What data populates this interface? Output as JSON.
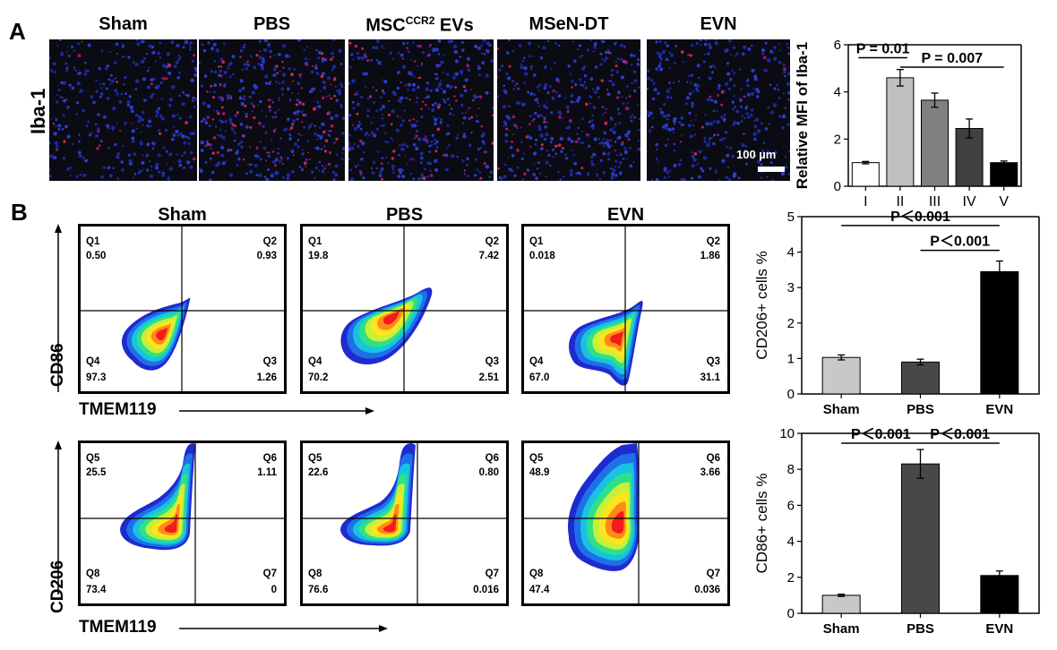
{
  "panel_a": {
    "label": "A",
    "row_label": "Iba-1",
    "columns": [
      {
        "title": "Sham",
        "sup": ""
      },
      {
        "title": "PBS",
        "sup": ""
      },
      {
        "title": "MSC",
        "sup": "CCR2",
        "suffix": " EVs"
      },
      {
        "title": "MSeN-DT",
        "sup": ""
      },
      {
        "title": "EVN",
        "sup": ""
      }
    ],
    "scale_bar": "100 µm",
    "red_density": [
      0.15,
      0.7,
      0.45,
      0.35,
      0.12
    ]
  },
  "panel_b": {
    "label": "B",
    "columns": [
      "Sham",
      "PBS",
      "EVN"
    ],
    "row1": {
      "y_axis": "CD86",
      "x_axis": "TMEM119",
      "plots": [
        {
          "tl": "Q1",
          "tl_v": "0.50",
          "tr": "Q2",
          "tr_v": "0.93",
          "bl": "Q4",
          "bl_v": "97.3",
          "br": "Q3",
          "br_v": "1.26"
        },
        {
          "tl": "Q1",
          "tl_v": "19.8",
          "tr": "Q2",
          "tr_v": "7.42",
          "bl": "Q4",
          "bl_v": "70.2",
          "br": "Q3",
          "br_v": "2.51"
        },
        {
          "tl": "Q1",
          "tl_v": "0.018",
          "tr": "Q2",
          "tr_v": "1.86",
          "bl": "Q4",
          "bl_v": "67.0",
          "br": "Q3",
          "br_v": "31.1"
        }
      ]
    },
    "row2": {
      "y_axis": "CD206",
      "x_axis": "TMEM119",
      "plots": [
        {
          "tl": "Q5",
          "tl_v": "25.5",
          "tr": "Q6",
          "tr_v": "1.11",
          "bl": "Q8",
          "bl_v": "73.4",
          "br": "Q7",
          "br_v": "0"
        },
        {
          "tl": "Q5",
          "tl_v": "22.6",
          "tr": "Q6",
          "tr_v": "0.80",
          "bl": "Q8",
          "bl_v": "76.6",
          "br": "Q7",
          "br_v": "0.016"
        },
        {
          "tl": "Q5",
          "tl_v": "48.9",
          "tr": "Q6",
          "tr_v": "3.66",
          "bl": "Q8",
          "bl_v": "47.4",
          "br": "Q7",
          "br_v": "0.036"
        }
      ]
    }
  },
  "chart_data": [
    {
      "type": "bar",
      "ylabel": "Relative MFI of Iba-1",
      "categories": [
        "I",
        "II",
        "III",
        "IV",
        "V"
      ],
      "values": [
        1.0,
        4.6,
        3.65,
        2.45,
        1.0
      ],
      "errors": [
        0.05,
        0.35,
        0.3,
        0.4,
        0.07
      ],
      "colors": [
        "#ffffff",
        "#c0c0c0",
        "#808080",
        "#404040",
        "#000000"
      ],
      "ylim": [
        0,
        6
      ],
      "yticks": [
        0,
        2,
        4,
        6
      ],
      "annotations": [
        {
          "text": "P = 0.01",
          "from": 0,
          "to": 1,
          "level": 5.45
        },
        {
          "text": "P = 0.007",
          "from": 1,
          "to": 4,
          "level": 5.05
        }
      ]
    },
    {
      "type": "bar",
      "ylabel": "CD206+ cells %",
      "categories": [
        "Sham",
        "PBS",
        "EVN"
      ],
      "values": [
        1.03,
        0.9,
        3.45
      ],
      "errors": [
        0.07,
        0.08,
        0.3
      ],
      "colors": [
        "#c8c8c8",
        "#484848",
        "#000000"
      ],
      "ylim": [
        0,
        5
      ],
      "yticks": [
        0,
        1,
        2,
        3,
        4,
        5
      ],
      "annotations": [
        {
          "text": "P＜0.001",
          "from": 0,
          "to": 2,
          "level": 4.75
        },
        {
          "text": "P＜0.001",
          "from": 1,
          "to": 2,
          "level": 4.05
        }
      ]
    },
    {
      "type": "bar",
      "ylabel": "CD86+ cells %",
      "categories": [
        "Sham",
        "PBS",
        "EVN"
      ],
      "values": [
        1.0,
        8.3,
        2.1
      ],
      "errors": [
        0.06,
        0.8,
        0.25
      ],
      "colors": [
        "#c8c8c8",
        "#484848",
        "#000000"
      ],
      "ylim": [
        0,
        10
      ],
      "yticks": [
        0,
        2,
        4,
        6,
        8,
        10
      ],
      "annotations": [
        {
          "text": "P＜0.001",
          "from": 0,
          "to": 1,
          "level": 9.45
        },
        {
          "text": "P＜0.001",
          "from": 1,
          "to": 2,
          "level": 9.45
        }
      ]
    }
  ]
}
